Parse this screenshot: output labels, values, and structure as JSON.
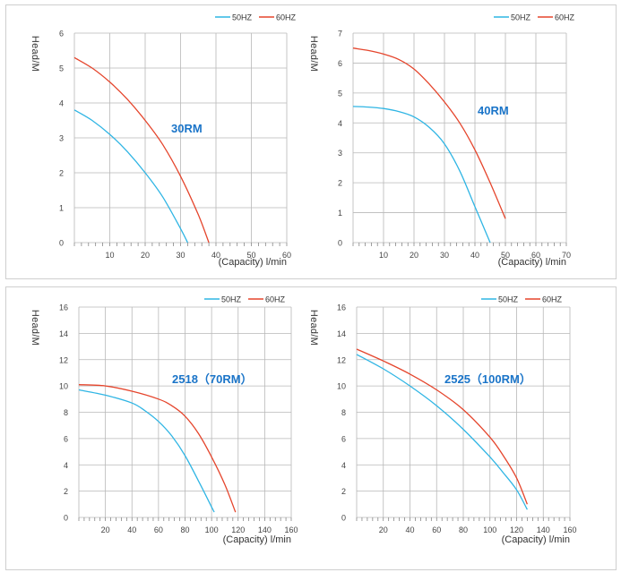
{
  "colors": {
    "series_50hz": "#2fb5e4",
    "series_60hz": "#e5452c",
    "model_label": "#1a74c8",
    "grid": "#b8b8b8",
    "axis_text": "#444444"
  },
  "chart_data": [
    {
      "type": "line",
      "model_label": "30RM",
      "ylabel": "Head/M",
      "xlabel": "(Capacity)  l/min",
      "xlim": [
        0,
        60
      ],
      "ylim": [
        0,
        6
      ],
      "xticks": [
        10,
        20,
        30,
        40,
        50,
        60
      ],
      "yticks": [
        0,
        1,
        2,
        3,
        4,
        5,
        6
      ],
      "x_minor_step": 2,
      "grid": true,
      "legend_position": "top-right",
      "series": [
        {
          "name": "50HZ",
          "color": "#2fb5e4",
          "x": [
            0,
            5,
            10,
            15,
            20,
            25,
            30,
            32
          ],
          "y": [
            3.8,
            3.5,
            3.1,
            2.6,
            2.0,
            1.3,
            0.4,
            0.0
          ]
        },
        {
          "name": "60HZ",
          "color": "#e5452c",
          "x": [
            0,
            5,
            10,
            15,
            20,
            25,
            30,
            35,
            38
          ],
          "y": [
            5.3,
            5.0,
            4.6,
            4.1,
            3.5,
            2.8,
            1.9,
            0.8,
            0.0
          ]
        }
      ]
    },
    {
      "type": "line",
      "model_label": "40RM",
      "ylabel": "Head/M",
      "xlabel": "(Capacity)  l/min",
      "xlim": [
        0,
        70
      ],
      "ylim": [
        0,
        7
      ],
      "xticks": [
        10,
        20,
        30,
        40,
        50,
        60,
        70
      ],
      "yticks": [
        0,
        1,
        2,
        3,
        4,
        5,
        6,
        7
      ],
      "x_minor_step": 2,
      "grid": true,
      "legend_position": "top-right",
      "series": [
        {
          "name": "50HZ",
          "color": "#2fb5e4",
          "x": [
            0,
            5,
            10,
            15,
            20,
            25,
            30,
            35,
            40,
            45
          ],
          "y": [
            4.55,
            4.53,
            4.48,
            4.38,
            4.2,
            3.85,
            3.3,
            2.4,
            1.2,
            0.0
          ]
        },
        {
          "name": "60HZ",
          "color": "#e5452c",
          "x": [
            0,
            5,
            10,
            15,
            20,
            25,
            30,
            35,
            40,
            45,
            50
          ],
          "y": [
            6.5,
            6.42,
            6.3,
            6.12,
            5.8,
            5.3,
            4.7,
            4.0,
            3.1,
            2.0,
            0.8
          ]
        }
      ]
    },
    {
      "type": "line",
      "model_label": "2518（70RM）",
      "ylabel": "Head/M",
      "xlabel": "(Capacity)  l/min",
      "xlim": [
        0,
        160
      ],
      "ylim": [
        0,
        16
      ],
      "xticks": [
        20,
        40,
        60,
        80,
        100,
        120,
        140,
        160
      ],
      "yticks": [
        0,
        2,
        4,
        6,
        8,
        10,
        12,
        14,
        16
      ],
      "x_minor_step": 4,
      "grid": true,
      "legend_position": "top-right",
      "series": [
        {
          "name": "50HZ",
          "color": "#2fb5e4",
          "x": [
            0,
            20,
            40,
            50,
            60,
            70,
            80,
            90,
            100,
            102
          ],
          "y": [
            9.7,
            9.3,
            8.7,
            8.1,
            7.3,
            6.2,
            4.7,
            2.8,
            0.8,
            0.4
          ]
        },
        {
          "name": "60HZ",
          "color": "#e5452c",
          "x": [
            0,
            20,
            40,
            60,
            70,
            80,
            90,
            100,
            110,
            118
          ],
          "y": [
            10.1,
            10.0,
            9.6,
            9.0,
            8.5,
            7.7,
            6.4,
            4.6,
            2.5,
            0.4
          ]
        }
      ]
    },
    {
      "type": "line",
      "model_label": "2525（100RM）",
      "ylabel": "Head/M",
      "xlabel": "(Capacity)  l/min",
      "xlim": [
        0,
        160
      ],
      "ylim": [
        0,
        16
      ],
      "xticks": [
        20,
        40,
        60,
        80,
        100,
        120,
        140,
        160
      ],
      "yticks": [
        0,
        2,
        4,
        6,
        8,
        10,
        12,
        14,
        16
      ],
      "x_minor_step": 4,
      "grid": true,
      "legend_position": "top-right",
      "series": [
        {
          "name": "50HZ",
          "color": "#2fb5e4",
          "x": [
            0,
            20,
            40,
            60,
            80,
            100,
            110,
            120,
            128
          ],
          "y": [
            12.4,
            11.3,
            10.0,
            8.5,
            6.7,
            4.6,
            3.4,
            2.1,
            0.6
          ]
        },
        {
          "name": "60HZ",
          "color": "#e5452c",
          "x": [
            0,
            20,
            40,
            60,
            80,
            100,
            110,
            120,
            128
          ],
          "y": [
            12.8,
            11.9,
            10.9,
            9.7,
            8.2,
            6.1,
            4.7,
            3.0,
            1.0
          ]
        }
      ]
    }
  ]
}
